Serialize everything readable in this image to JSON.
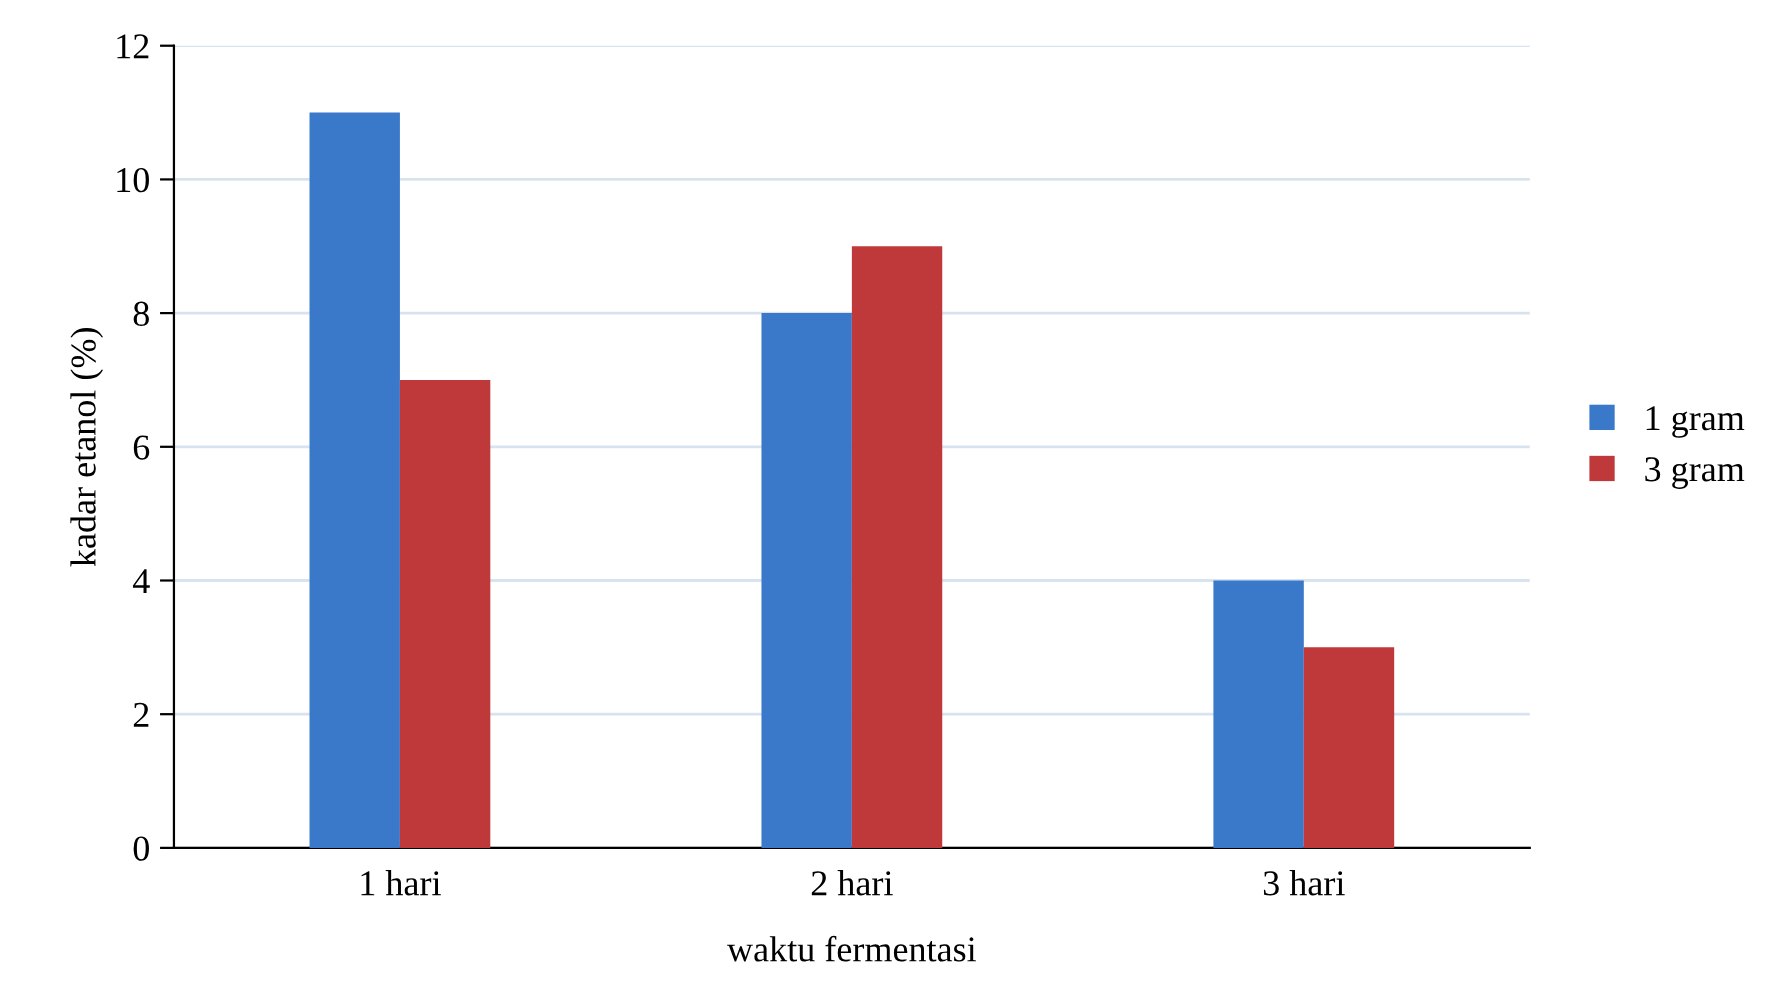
{
  "chart_data": {
    "type": "bar",
    "xlabel": "waktu fermentasi",
    "ylabel": "kadar etanol (%)",
    "categories": [
      "1 hari",
      "2 hari",
      "3 hari"
    ],
    "series": [
      {
        "name": "1 gram",
        "color": "#3a78c9",
        "values": [
          11,
          8,
          4
        ]
      },
      {
        "name": "3 gram",
        "color": "#c0393a",
        "values": [
          7,
          9,
          3
        ]
      }
    ],
    "ylim": [
      0,
      12
    ],
    "yticks": [
      0,
      2,
      4,
      6,
      8,
      10,
      12
    ],
    "grid": "y",
    "legend": "right"
  }
}
